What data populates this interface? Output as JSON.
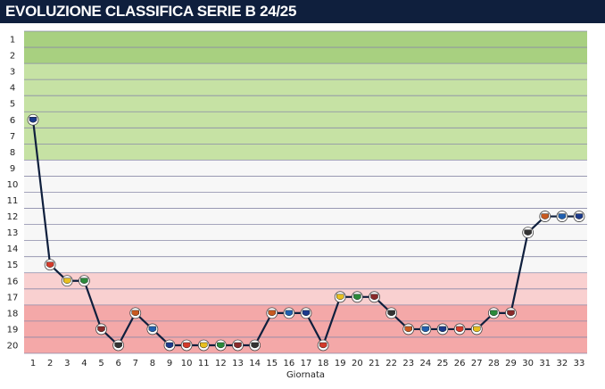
{
  "header": {
    "title": "EVOLUZIONE CLASSIFICA SERIE B 24/25"
  },
  "chart_data": {
    "type": "line",
    "title": "EVOLUZIONE CLASSIFICA SERIE B 24/25",
    "xlabel": "Giornata",
    "ylabel": "",
    "y_inverted": true,
    "ylim": [
      1,
      20
    ],
    "xlim": [
      1,
      33
    ],
    "x": [
      1,
      2,
      3,
      4,
      5,
      6,
      7,
      8,
      9,
      10,
      11,
      12,
      13,
      14,
      15,
      16,
      17,
      18,
      19,
      20,
      21,
      22,
      23,
      24,
      25,
      26,
      27,
      28,
      29,
      30,
      31,
      32,
      33
    ],
    "y_ticks": [
      1,
      2,
      3,
      4,
      5,
      6,
      7,
      8,
      9,
      10,
      11,
      12,
      13,
      14,
      15,
      16,
      17,
      18,
      19,
      20
    ],
    "series": [
      {
        "values": [
          6,
          15,
          16,
          16,
          19,
          20,
          18,
          19,
          20,
          20,
          20,
          20,
          20,
          20,
          18,
          18,
          18,
          20,
          17,
          17,
          17,
          18,
          19,
          19,
          19,
          19,
          19,
          18,
          18,
          13,
          12,
          12,
          12
        ]
      }
    ],
    "zones": [
      {
        "from": 1,
        "to": 2,
        "color": "#a8d080"
      },
      {
        "from": 3,
        "to": 8,
        "color": "#c6e2a4"
      },
      {
        "from": 9,
        "to": 15,
        "color": "#f7f7f7"
      },
      {
        "from": 16,
        "to": 17,
        "color": "#f9d0d0"
      },
      {
        "from": 18,
        "to": 20,
        "color": "#f4a8a8"
      }
    ],
    "grid": true,
    "line_color": "#0f1f3d"
  }
}
